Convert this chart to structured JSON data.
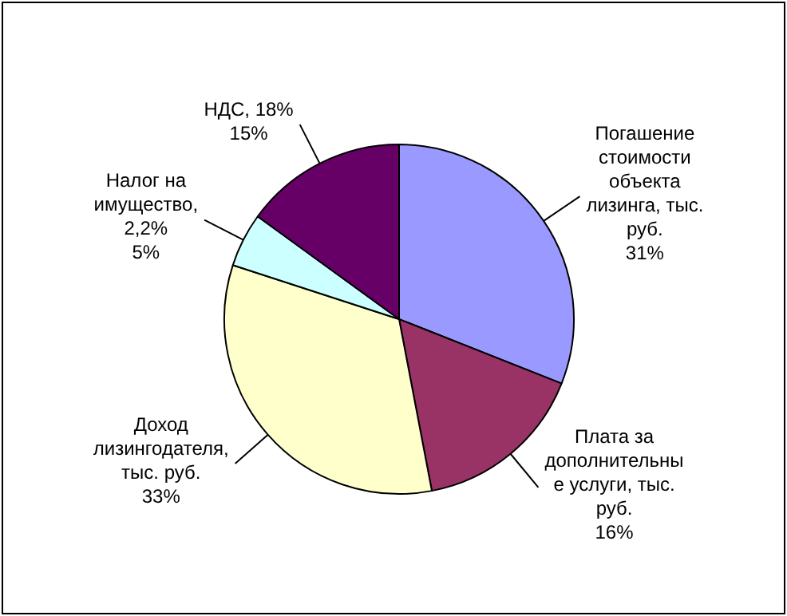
{
  "chart_data": {
    "type": "pie",
    "categories": [
      "Погашение стоимости объекта лизинга, тыс. руб.",
      "Плата за дополнительные услуги, тыс. руб.",
      "Доход лизингодателя, тыс. руб.",
      "Налог на имущество, 2,2%",
      "НДС, 18%"
    ],
    "values": [
      31,
      16,
      33,
      5,
      15
    ],
    "value_labels": [
      "31%",
      "16%",
      "33%",
      "5%",
      "15%"
    ],
    "colors": [
      "#9999ff",
      "#993366",
      "#ffffcc",
      "#ccffff",
      "#660066"
    ]
  }
}
